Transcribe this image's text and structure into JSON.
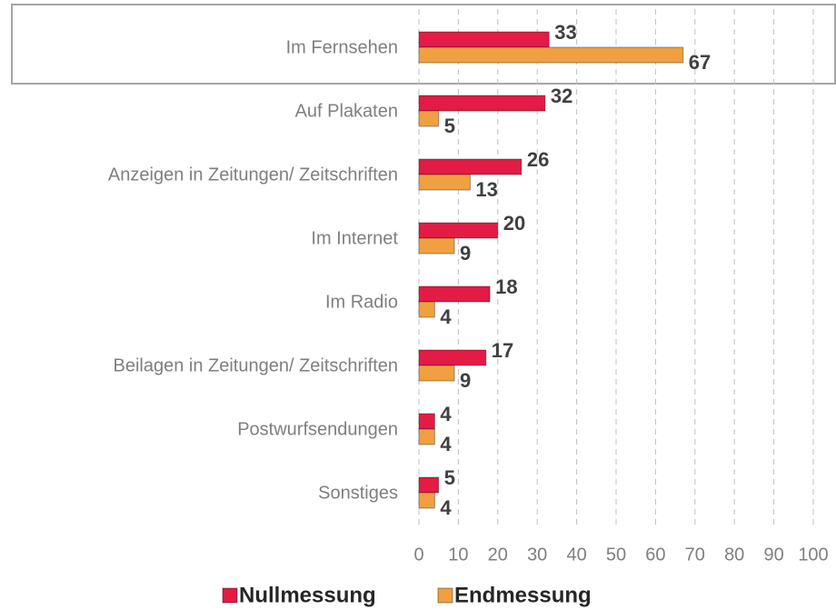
{
  "chart_data": {
    "type": "bar",
    "orientation": "horizontal",
    "categories": [
      "Im Fernsehen",
      "Auf Plakaten",
      "Anzeigen in Zeitungen/ Zeitschriften",
      "Im Internet",
      "Im Radio",
      "Beilagen in Zeitungen/ Zeitschriften",
      "Postwurfsendungen",
      "Sonstiges"
    ],
    "series": [
      {
        "name": "Nullmessung",
        "color": "#e31b45",
        "values": [
          33,
          32,
          26,
          20,
          18,
          17,
          4,
          5
        ]
      },
      {
        "name": "Endmessung",
        "color": "#f0a040",
        "values": [
          67,
          5,
          13,
          9,
          4,
          9,
          4,
          4
        ]
      }
    ],
    "xlim": [
      0,
      100
    ],
    "xticks": [
      0,
      10,
      20,
      30,
      40,
      50,
      60,
      70,
      80,
      90,
      100
    ],
    "grid": true,
    "legend": "bottom"
  }
}
